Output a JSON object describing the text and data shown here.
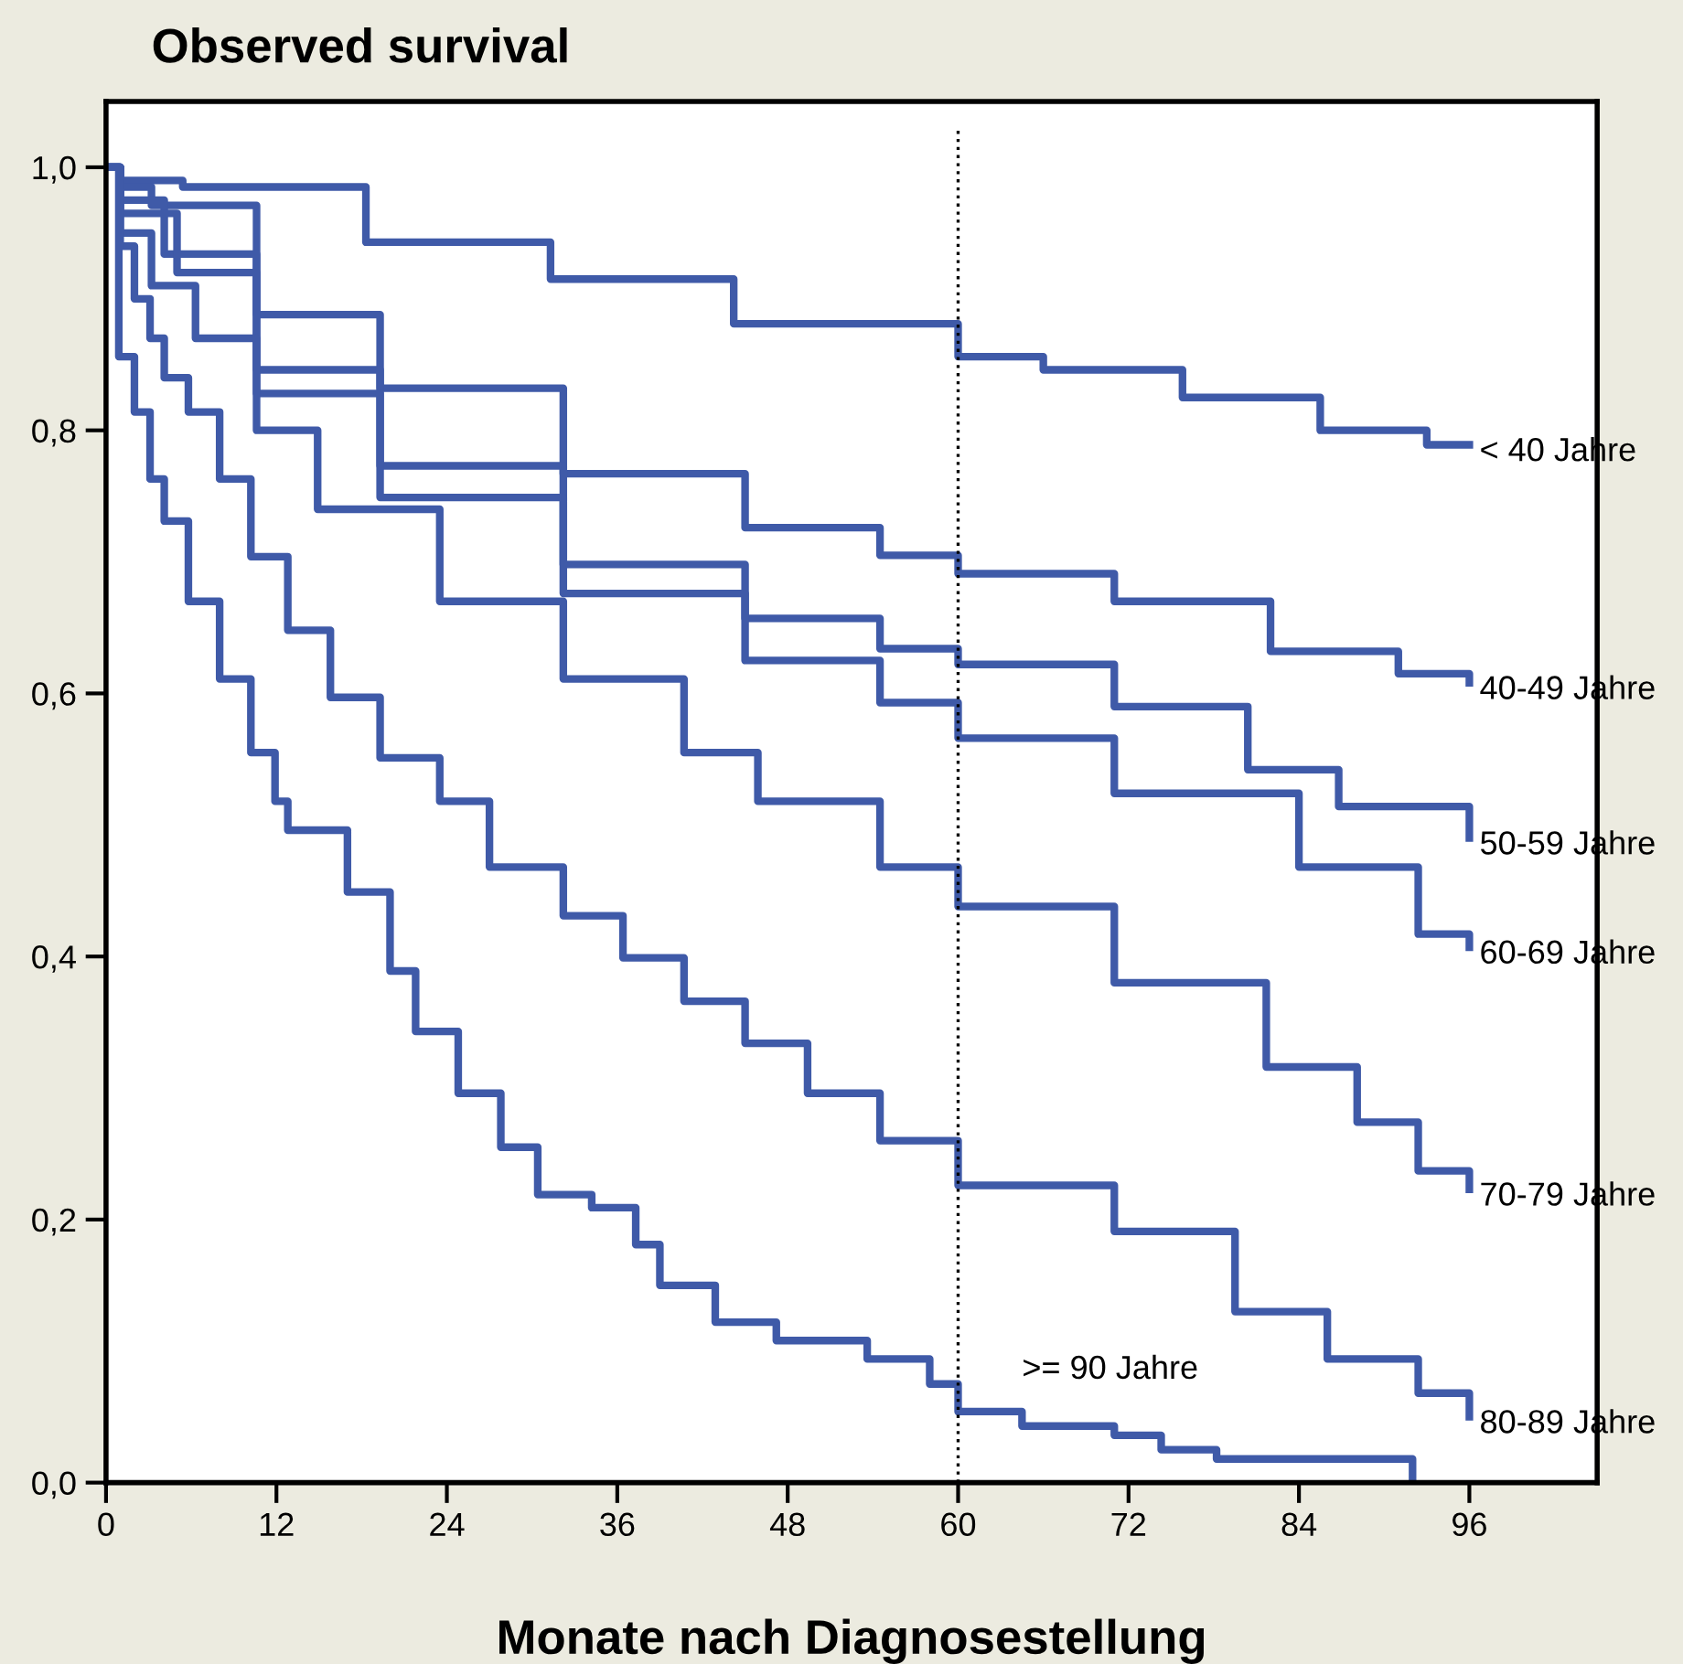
{
  "chart_data": {
    "type": "step",
    "title": "Observed survival",
    "xlabel": "Monate nach Diagnosestellung",
    "xlim": [
      0,
      105
    ],
    "xticks": [
      0,
      12,
      24,
      36,
      48,
      60,
      72,
      84,
      96
    ],
    "ylim": [
      0,
      1.05
    ],
    "yticks": [
      {
        "value": 0,
        "label": "0,0"
      },
      {
        "value": 0.2,
        "label": "0,2"
      },
      {
        "value": 0.4,
        "label": "0,4"
      },
      {
        "value": 0.6,
        "label": "0,6"
      },
      {
        "value": 0.8,
        "label": "0,8"
      },
      {
        "value": 1.0,
        "label": "1,0"
      }
    ],
    "grid": false,
    "line_style": "solid",
    "marker": "none",
    "series": [
      {
        "name": "< 40 Jahre",
        "color": "#3f5aa8",
        "x": [
          0,
          1,
          5.4,
          18.3,
          31.3,
          44.2,
          60,
          66,
          75.8,
          84.2,
          85.5,
          92.6,
          93,
          96
        ],
        "values": [
          1.0,
          0.99,
          0.985,
          0.943,
          0.915,
          0.881,
          0.856,
          0.846,
          0.825,
          0.825,
          0.8,
          0.8,
          0.789,
          0.789
        ]
      },
      {
        "name": "40-49 Jahre",
        "color": "#3f5aa8",
        "x": [
          0,
          1,
          3.2,
          10.6,
          19.3,
          32.2,
          45,
          54.5,
          60,
          71,
          82,
          88,
          91,
          96
        ],
        "values": [
          1.0,
          0.985,
          0.971,
          0.888,
          0.832,
          0.767,
          0.726,
          0.705,
          0.691,
          0.67,
          0.632,
          0.632,
          0.615,
          0.608
        ]
      },
      {
        "name": "50-59 Jahre",
        "color": "#3f5aa8",
        "x": [
          0,
          1,
          4.1,
          10.6,
          19.3,
          32.2,
          45,
          54.5,
          60,
          71,
          80.4,
          86.8,
          96
        ],
        "values": [
          1.0,
          0.975,
          0.934,
          0.846,
          0.773,
          0.698,
          0.657,
          0.634,
          0.622,
          0.59,
          0.542,
          0.514,
          0.49
        ]
      },
      {
        "name": "60-69 Jahre",
        "color": "#3f5aa8",
        "x": [
          0,
          1,
          5,
          10.6,
          19.3,
          32.2,
          45,
          54.5,
          60,
          71,
          84,
          92.4,
          96
        ],
        "values": [
          1.0,
          0.965,
          0.92,
          0.828,
          0.749,
          0.676,
          0.625,
          0.593,
          0.566,
          0.524,
          0.468,
          0.417,
          0.407
        ]
      },
      {
        "name": "70-79 Jahre",
        "color": "#3f5aa8",
        "x": [
          0,
          1,
          3.2,
          6.3,
          10.6,
          14.9,
          23.5,
          32.2,
          40.7,
          45.9,
          54.5,
          60,
          71,
          81.7,
          88.1,
          92.4,
          96
        ],
        "values": [
          1.0,
          0.95,
          0.91,
          0.87,
          0.8,
          0.74,
          0.67,
          0.611,
          0.555,
          0.518,
          0.468,
          0.438,
          0.38,
          0.316,
          0.274,
          0.237,
          0.223
        ]
      },
      {
        "name": "80-89 Jahre",
        "color": "#3f5aa8",
        "x": [
          0,
          1,
          2,
          3.1,
          4.1,
          5.8,
          8,
          10.2,
          12.8,
          15.8,
          19.3,
          23.5,
          27,
          32.2,
          36.4,
          40.7,
          45,
          49.4,
          54.5,
          60,
          71,
          79.5,
          86,
          92.4,
          96
        ],
        "values": [
          1.0,
          0.94,
          0.9,
          0.87,
          0.84,
          0.814,
          0.763,
          0.704,
          0.648,
          0.597,
          0.551,
          0.518,
          0.468,
          0.431,
          0.399,
          0.366,
          0.334,
          0.296,
          0.26,
          0.226,
          0.191,
          0.13,
          0.094,
          0.068,
          0.05
        ]
      },
      {
        "color": "#3f5aa8",
        "x": [
          0,
          0.9,
          2,
          3.1,
          4.1,
          5.8,
          8,
          10.2,
          11.9,
          12.8,
          17,
          20,
          21.8,
          24.8,
          27.8,
          30.4,
          34.2,
          37.3,
          39,
          42.9,
          47.2,
          53.6,
          58,
          60,
          64.5,
          71,
          74.3,
          78.2,
          92
        ],
        "values": [
          1.0,
          0.856,
          0.814,
          0.763,
          0.731,
          0.67,
          0.611,
          0.555,
          0.518,
          0.496,
          0.449,
          0.389,
          0.343,
          0.296,
          0.255,
          0.219,
          0.209,
          0.181,
          0.15,
          0.122,
          0.108,
          0.094,
          0.075,
          0.054,
          0.043,
          0.036,
          0.025,
          0.018,
          0.0
        ]
      }
    ],
    "ref_lines": [
      {
        "axis": "x",
        "value": 60,
        "color": "#000000",
        "line_style": "dotted"
      }
    ],
    "annotations": [
      {
        "text": ">= 90 Jahre",
        "x": 64.5,
        "y": 0.043
      }
    ]
  }
}
